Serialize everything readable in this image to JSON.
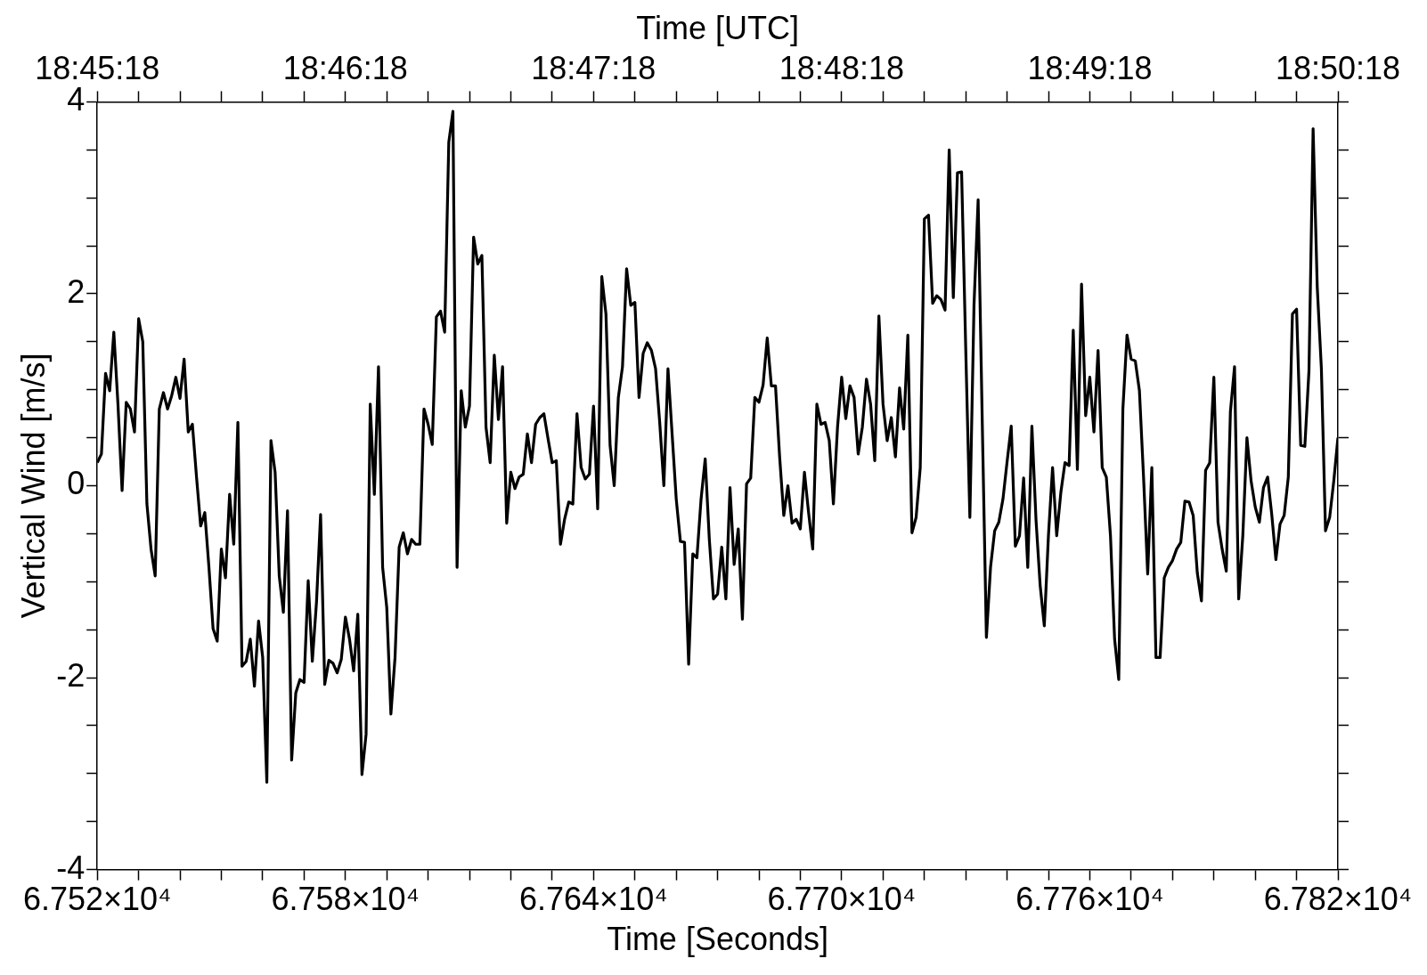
{
  "chart_data": {
    "type": "line",
    "xlabel": "Time [Seconds]",
    "x2label": "Time [UTC]",
    "ylabel": "Vertical Wind [m/s]",
    "xlim": [
      67518,
      67818
    ],
    "x2lim": [
      67518,
      67818
    ],
    "ylim": [
      -4,
      4
    ],
    "xticks": [
      {
        "value": 67518,
        "label": "6.752×10⁴"
      },
      {
        "value": 67528,
        "label": null
      },
      {
        "value": 67538,
        "label": null
      },
      {
        "value": 67548,
        "label": null
      },
      {
        "value": 67558,
        "label": null
      },
      {
        "value": 67568,
        "label": null
      },
      {
        "value": 67578,
        "label": "6.758×10⁴"
      },
      {
        "value": 67588,
        "label": null
      },
      {
        "value": 67598,
        "label": null
      },
      {
        "value": 67608,
        "label": null
      },
      {
        "value": 67618,
        "label": null
      },
      {
        "value": 67628,
        "label": null
      },
      {
        "value": 67638,
        "label": "6.764×10⁴"
      },
      {
        "value": 67648,
        "label": null
      },
      {
        "value": 67658,
        "label": null
      },
      {
        "value": 67668,
        "label": null
      },
      {
        "value": 67678,
        "label": null
      },
      {
        "value": 67688,
        "label": null
      },
      {
        "value": 67698,
        "label": "6.770×10⁴"
      },
      {
        "value": 67708,
        "label": null
      },
      {
        "value": 67718,
        "label": null
      },
      {
        "value": 67728,
        "label": null
      },
      {
        "value": 67738,
        "label": null
      },
      {
        "value": 67748,
        "label": null
      },
      {
        "value": 67758,
        "label": "6.776×10⁴"
      },
      {
        "value": 67768,
        "label": null
      },
      {
        "value": 67778,
        "label": null
      },
      {
        "value": 67788,
        "label": null
      },
      {
        "value": 67798,
        "label": null
      },
      {
        "value": 67808,
        "label": null
      },
      {
        "value": 67818,
        "label": "6.782×10⁴"
      }
    ],
    "x2ticks": [
      {
        "value": 67518,
        "label": "18:45:18"
      },
      {
        "value": 67528,
        "label": null
      },
      {
        "value": 67538,
        "label": null
      },
      {
        "value": 67548,
        "label": null
      },
      {
        "value": 67558,
        "label": null
      },
      {
        "value": 67568,
        "label": null
      },
      {
        "value": 67578,
        "label": "18:46:18"
      },
      {
        "value": 67588,
        "label": null
      },
      {
        "value": 67598,
        "label": null
      },
      {
        "value": 67608,
        "label": null
      },
      {
        "value": 67618,
        "label": null
      },
      {
        "value": 67628,
        "label": null
      },
      {
        "value": 67638,
        "label": "18:47:18"
      },
      {
        "value": 67648,
        "label": null
      },
      {
        "value": 67658,
        "label": null
      },
      {
        "value": 67668,
        "label": null
      },
      {
        "value": 67678,
        "label": null
      },
      {
        "value": 67688,
        "label": null
      },
      {
        "value": 67698,
        "label": "18:48:18"
      },
      {
        "value": 67708,
        "label": null
      },
      {
        "value": 67718,
        "label": null
      },
      {
        "value": 67728,
        "label": null
      },
      {
        "value": 67738,
        "label": null
      },
      {
        "value": 67748,
        "label": null
      },
      {
        "value": 67758,
        "label": "18:49:18"
      },
      {
        "value": 67768,
        "label": null
      },
      {
        "value": 67778,
        "label": null
      },
      {
        "value": 67788,
        "label": null
      },
      {
        "value": 67798,
        "label": null
      },
      {
        "value": 67808,
        "label": null
      },
      {
        "value": 67818,
        "label": "18:50:18"
      }
    ],
    "yticks": [
      -4,
      {
        "value": -3.5,
        "label": null
      },
      {
        "value": -3,
        "label": null
      },
      {
        "value": -2.5,
        "label": null
      },
      -2,
      {
        "value": -1.5,
        "label": null
      },
      {
        "value": -1,
        "label": null
      },
      {
        "value": -0.5,
        "label": null
      },
      0,
      {
        "value": 0.5,
        "label": null
      },
      {
        "value": 1,
        "label": null
      },
      {
        "value": 1.5,
        "label": null
      },
      2,
      {
        "value": 2.5,
        "label": null
      },
      {
        "value": 3,
        "label": null
      },
      {
        "value": 3.5,
        "label": null
      },
      4
    ],
    "x": [
      67518,
      67519,
      67520,
      67521,
      67522,
      67523,
      67524,
      67525,
      67526,
      67527,
      67528,
      67529,
      67530,
      67531,
      67532,
      67533,
      67534,
      67535,
      67536,
      67537,
      67538,
      67539,
      67540,
      67541,
      67542,
      67543,
      67544,
      67545,
      67546,
      67547,
      67548,
      67549,
      67550,
      67551,
      67552,
      67553,
      67554,
      67555,
      67556,
      67557,
      67558,
      67559,
      67560,
      67561,
      67562,
      67563,
      67564,
      67565,
      67566,
      67567,
      67568,
      67569,
      67570,
      67571,
      67572,
      67573,
      67574,
      67575,
      67576,
      67577,
      67578,
      67579,
      67580,
      67581,
      67582,
      67583,
      67584,
      67585,
      67586,
      67587,
      67588,
      67589,
      67590,
      67591,
      67592,
      67593,
      67594,
      67595,
      67596,
      67597,
      67598,
      67599,
      67600,
      67601,
      67602,
      67603,
      67604,
      67605,
      67606,
      67607,
      67608,
      67609,
      67610,
      67611,
      67612,
      67613,
      67614,
      67615,
      67616,
      67617,
      67618,
      67619,
      67620,
      67621,
      67622,
      67623,
      67624,
      67625,
      67626,
      67627,
      67628,
      67629,
      67630,
      67631,
      67632,
      67633,
      67634,
      67635,
      67636,
      67637,
      67638,
      67639,
      67640,
      67641,
      67642,
      67643,
      67644,
      67645,
      67646,
      67647,
      67648,
      67649,
      67650,
      67651,
      67652,
      67653,
      67654,
      67655,
      67656,
      67657,
      67658,
      67659,
      67660,
      67661,
      67662,
      67663,
      67664,
      67665,
      67666,
      67667,
      67668,
      67669,
      67670,
      67671,
      67672,
      67673,
      67674,
      67675,
      67676,
      67677,
      67678,
      67679,
      67680,
      67681,
      67682,
      67683,
      67684,
      67685,
      67686,
      67687,
      67688,
      67689,
      67690,
      67691,
      67692,
      67693,
      67694,
      67695,
      67696,
      67697,
      67698,
      67699,
      67700,
      67701,
      67702,
      67703,
      67704,
      67705,
      67706,
      67707,
      67708,
      67709,
      67710,
      67711,
      67712,
      67713,
      67714,
      67715,
      67716,
      67717,
      67718,
      67719,
      67720,
      67721,
      67722,
      67723,
      67724,
      67725,
      67726,
      67727,
      67728,
      67729,
      67730,
      67731,
      67732,
      67733,
      67734,
      67735,
      67736,
      67737,
      67738,
      67739,
      67740,
      67741,
      67742,
      67743,
      67744,
      67745,
      67746,
      67747,
      67748,
      67749,
      67750,
      67751,
      67752,
      67753,
      67754,
      67755,
      67756,
      67757,
      67758,
      67759,
      67760,
      67761,
      67762,
      67763,
      67764,
      67765,
      67766,
      67767,
      67768,
      67769,
      67770,
      67771,
      67772,
      67773,
      67774,
      67775,
      67776,
      67777,
      67778,
      67779,
      67780,
      67781,
      67782,
      67783,
      67784,
      67785,
      67786,
      67787,
      67788,
      67789,
      67790,
      67791,
      67792,
      67793,
      67794,
      67795,
      67796,
      67797,
      67798,
      67799,
      67800,
      67801,
      67802,
      67803,
      67804,
      67805,
      67806,
      67807,
      67808,
      67809,
      67810,
      67811,
      67812,
      67813,
      67814,
      67815,
      67816,
      67817,
      67818
    ],
    "series": [
      {
        "color": "#000000",
        "values": [
          0.24,
          0.33,
          1.17,
          0.99,
          1.6,
          0.85,
          -0.05,
          0.87,
          0.8,
          0.56,
          1.74,
          1.5,
          -0.19,
          -0.66,
          -0.94,
          0.8,
          0.97,
          0.8,
          0.94,
          1.13,
          0.91,
          1.32,
          0.56,
          0.64,
          0.09,
          -0.42,
          -0.28,
          -0.85,
          -1.49,
          -1.62,
          -0.66,
          -0.96,
          -0.09,
          -0.61,
          0.66,
          -1.88,
          -1.83,
          -1.6,
          -2.09,
          -1.41,
          -1.79,
          -3.09,
          0.47,
          0.14,
          -0.94,
          -1.32,
          -0.26,
          -2.86,
          -2.16,
          -2.02,
          -2.05,
          -0.99,
          -1.83,
          -1.22,
          -0.3,
          -2.07,
          -1.82,
          -1.85,
          -1.95,
          -1.81,
          -1.37,
          -1.6,
          -1.93,
          -1.34,
          -3.01,
          -2.59,
          0.85,
          -0.09,
          1.24,
          -0.85,
          -1.27,
          -2.38,
          -1.79,
          -0.64,
          -0.49,
          -0.71,
          -0.56,
          -0.61,
          -0.61,
          0.8,
          0.64,
          0.43,
          1.76,
          1.82,
          1.6,
          3.58,
          3.9,
          -0.85,
          0.99,
          0.61,
          0.83,
          2.59,
          2.31,
          2.4,
          0.61,
          0.24,
          1.36,
          0.69,
          1.24,
          -0.39,
          0.14,
          -0.03,
          0.09,
          0.12,
          0.54,
          0.24,
          0.64,
          0.71,
          0.75,
          0.49,
          0.24,
          0.26,
          -0.61,
          -0.35,
          -0.17,
          -0.19,
          0.75,
          0.19,
          0.07,
          0.12,
          0.83,
          -0.24,
          2.18,
          1.79,
          0.42,
          0,
          0.92,
          1.24,
          2.26,
          1.88,
          1.91,
          0.92,
          1.38,
          1.49,
          1.41,
          1.22,
          0.66,
          0,
          1.22,
          0.54,
          -0.14,
          -0.58,
          -0.59,
          -1.86,
          -0.71,
          -0.75,
          -0.14,
          0.28,
          -0.56,
          -1.18,
          -1.13,
          -0.64,
          -1.18,
          -0.02,
          -0.82,
          -0.45,
          -1.39,
          0.02,
          0.08,
          0.92,
          0.87,
          1.05,
          1.54,
          1.04,
          1.04,
          0.3,
          -0.31,
          0,
          -0.39,
          -0.35,
          -0.45,
          0.14,
          -0.28,
          -0.66,
          0.85,
          0.64,
          0.66,
          0.47,
          -0.19,
          0.61,
          1.13,
          0.7,
          1.04,
          0.92,
          0.33,
          0.61,
          1.11,
          0.85,
          0.26,
          1.77,
          0.85,
          0.47,
          0.71,
          0.3,
          1.02,
          0.59,
          1.57,
          -0.49,
          -0.33,
          0.19,
          2.78,
          2.82,
          1.9,
          1.98,
          1.94,
          1.83,
          3.5,
          1.96,
          3.26,
          3.27,
          1.43,
          -0.33,
          1.88,
          2.98,
          0.66,
          -1.58,
          -0.85,
          -0.47,
          -0.38,
          -0.14,
          0.25,
          0.62,
          -0.63,
          -0.52,
          0.08,
          -0.85,
          0.62,
          -0.36,
          -1.04,
          -1.46,
          -0.52,
          0.19,
          -0.52,
          -0.07,
          0.24,
          0.21,
          1.62,
          0.17,
          2.1,
          0.73,
          1.13,
          0.56,
          1.41,
          0.19,
          0.09,
          -0.52,
          -1.6,
          -2.02,
          0.8,
          1.57,
          1.32,
          1.3,
          0.99,
          0.09,
          -0.92,
          0.19,
          -1.79,
          -1.79,
          -0.96,
          -0.85,
          -0.78,
          -0.66,
          -0.59,
          -0.16,
          -0.17,
          -0.31,
          -0.91,
          -1.2,
          0.16,
          0.24,
          1.13,
          -0.38,
          -0.66,
          -0.89,
          0.77,
          1.24,
          -1.18,
          -0.52,
          0.5,
          0.05,
          -0.22,
          -0.38,
          -0.02,
          0.09,
          -0.3,
          -0.77,
          -0.4,
          -0.31,
          0.09,
          1.79,
          1.84,
          0.42,
          0.41,
          1.2,
          3.72,
          2.07,
          1.22,
          -0.47,
          -0.33,
          0.05,
          0.5
        ]
      }
    ]
  }
}
